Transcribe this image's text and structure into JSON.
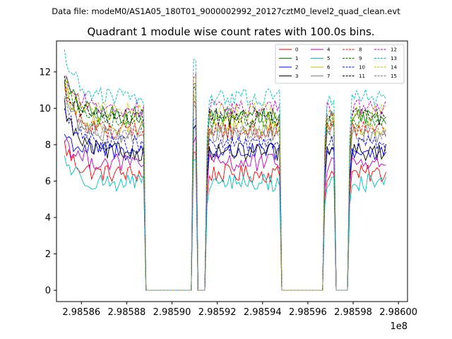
{
  "chart_data": {
    "type": "line",
    "suptitle": "Data file: modeM0/AS1A05_180T01_9000002992_20127cztM0_level2_quad_clean.evt",
    "title": "Quadrant 1 module wise count rates with 100.0s bins.",
    "xlabel": "",
    "ylabel": "",
    "xlim": [
      298584900,
      298600400
    ],
    "ylim": [
      -0.62,
      13.7
    ],
    "x_offset_label": "1e8",
    "x_ticks": [
      298586000,
      298588000,
      298590000,
      298592000,
      298594000,
      298596000,
      298598000,
      298600000
    ],
    "x_tick_labels": [
      "2.98586",
      "2.98588",
      "2.98590",
      "2.98592",
      "2.98594",
      "2.98596",
      "2.98598",
      "2.98600"
    ],
    "y_ticks": [
      0,
      2,
      4,
      6,
      8,
      10,
      12
    ],
    "y_tick_labels": [
      "0",
      "2",
      "4",
      "6",
      "8",
      "10",
      "12"
    ],
    "grid": false,
    "legend_location": "top-right",
    "legend_columns": 4,
    "time_segments": [
      {
        "start": 298585250,
        "end": 298588750,
        "kind": "on"
      },
      {
        "start": 298588850,
        "end": 298590850,
        "kind": "off"
      },
      {
        "start": 298590950,
        "end": 298591050,
        "kind": "spike"
      },
      {
        "start": 298591150,
        "end": 298591450,
        "kind": "off"
      },
      {
        "start": 298591550,
        "end": 298594750,
        "kind": "on"
      },
      {
        "start": 298594850,
        "end": 298596650,
        "kind": "off"
      },
      {
        "start": 298596750,
        "end": 298597150,
        "kind": "on"
      },
      {
        "start": 298597250,
        "end": 298597750,
        "kind": "off"
      },
      {
        "start": 298597850,
        "end": 298599450,
        "kind": "on"
      }
    ],
    "series": [
      {
        "name": "0",
        "color": "#ff0000",
        "dash": "solid",
        "start": 8.0,
        "level": 6.4
      },
      {
        "name": "1",
        "color": "#008000",
        "dash": "solid",
        "start": 11.8,
        "level": 9.6
      },
      {
        "name": "2",
        "color": "#0000ff",
        "dash": "solid",
        "start": 8.6,
        "level": 7.6
      },
      {
        "name": "3",
        "color": "#000000",
        "dash": "solid",
        "start": 10.2,
        "level": 7.6
      },
      {
        "name": "4",
        "color": "#bf00bf",
        "dash": "solid",
        "start": 8.4,
        "level": 7.0
      },
      {
        "name": "5",
        "color": "#00bfbf",
        "dash": "solid",
        "start": 7.3,
        "level": 5.9
      },
      {
        "name": "6",
        "color": "#bfbf00",
        "dash": "solid",
        "start": 11.0,
        "level": 9.0
      },
      {
        "name": "7",
        "color": "#808080",
        "dash": "solid",
        "start": 10.8,
        "level": 8.6
      },
      {
        "name": "8",
        "color": "#ff0000",
        "dash": "dashed",
        "start": 11.2,
        "level": 8.8
      },
      {
        "name": "9",
        "color": "#008000",
        "dash": "dashed",
        "start": 11.6,
        "level": 9.4
      },
      {
        "name": "10",
        "color": "#0000ff",
        "dash": "dashed",
        "start": 10.0,
        "level": 8.0
      },
      {
        "name": "11",
        "color": "#000000",
        "dash": "dashed",
        "start": 11.4,
        "level": 9.5
      },
      {
        "name": "12",
        "color": "#bf00bf",
        "dash": "dashed",
        "start": 12.0,
        "level": 10.0
      },
      {
        "name": "13",
        "color": "#00bfbf",
        "dash": "dashed",
        "start": 13.1,
        "level": 10.6
      },
      {
        "name": "14",
        "color": "#bfbf00",
        "dash": "dashed",
        "start": 11.5,
        "level": 9.8
      },
      {
        "name": "15",
        "color": "#808080",
        "dash": "dashed",
        "start": 10.6,
        "level": 8.6
      }
    ]
  }
}
